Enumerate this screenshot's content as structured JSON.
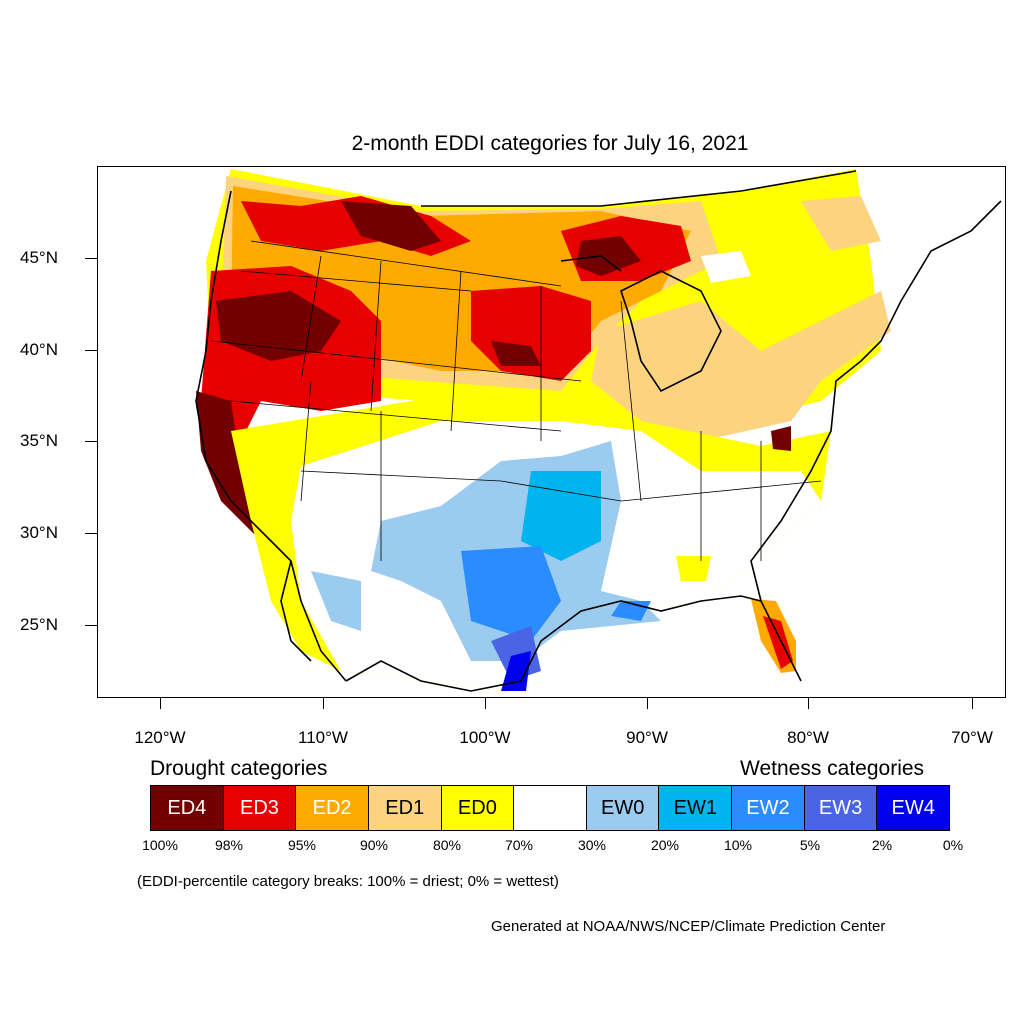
{
  "title": "2-month EDDI categories for July 16, 2021",
  "latitude_labels": [
    "45°N",
    "40°N",
    "35°N",
    "30°N",
    "25°N"
  ],
  "longitude_labels": [
    "120°W",
    "110°W",
    "100°W",
    "90°W",
    "80°W",
    "70°W"
  ],
  "legend": {
    "drought_heading": "Drought categories",
    "wetness_heading": "Wetness categories",
    "categories": [
      {
        "label": "ED4",
        "color": "#730000"
      },
      {
        "label": "ED3",
        "color": "#e60000"
      },
      {
        "label": "ED2",
        "color": "#ffaa00"
      },
      {
        "label": "ED1",
        "color": "#fcd37f"
      },
      {
        "label": "ED0",
        "color": "#ffff00"
      },
      {
        "label": "",
        "color": "#ffffff"
      },
      {
        "label": "EW0",
        "color": "#9ccbf0"
      },
      {
        "label": "EW1",
        "color": "#00b4f0"
      },
      {
        "label": "EW2",
        "color": "#2a8cff"
      },
      {
        "label": "EW3",
        "color": "#4b64e6"
      },
      {
        "label": "EW4",
        "color": "#0000ee"
      }
    ],
    "percentiles": [
      "100%",
      "98%",
      "95%",
      "90%",
      "80%",
      "70%",
      "30%",
      "20%",
      "10%",
      "5%",
      "2%",
      "0%"
    ]
  },
  "note": "(EDDI-percentile category breaks: 100% = driest; 0% = wettest)",
  "credit": "Generated at NOAA/NWS/NCEP/Climate Prediction Center"
}
